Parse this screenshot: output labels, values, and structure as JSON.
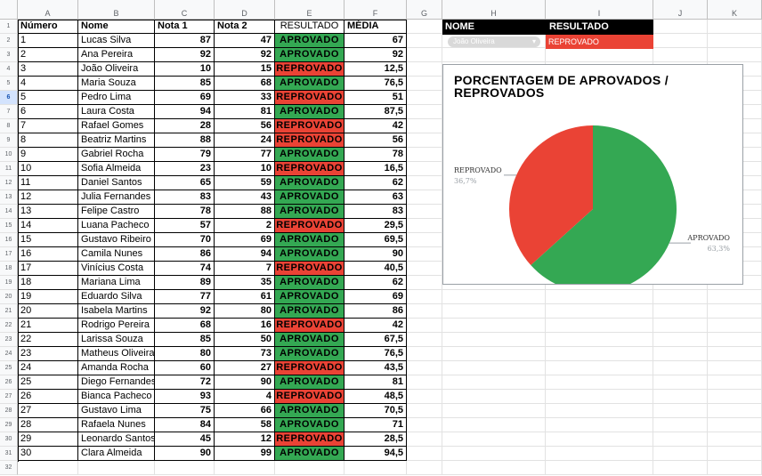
{
  "columns": [
    "A",
    "B",
    "C",
    "D",
    "E",
    "F",
    "G",
    "H",
    "I",
    "J",
    "K"
  ],
  "header": {
    "numero": "Número",
    "nome": "Nome",
    "nota1": "Nota 1",
    "nota2": "Nota 2",
    "resultado": "RESULTADO",
    "media": "MÉDIA"
  },
  "rows": [
    [
      "1",
      "Lucas Silva",
      "87",
      "47",
      "APROVADO",
      "67"
    ],
    [
      "2",
      "Ana Pereira",
      "92",
      "92",
      "APROVADO",
      "92"
    ],
    [
      "3",
      "João Oliveira",
      "10",
      "15",
      "REPROVADO",
      "12,5"
    ],
    [
      "4",
      "Maria Souza",
      "85",
      "68",
      "APROVADO",
      "76,5"
    ],
    [
      "5",
      "Pedro Lima",
      "69",
      "33",
      "REPROVADO",
      "51"
    ],
    [
      "6",
      "Laura Costa",
      "94",
      "81",
      "APROVADO",
      "87,5"
    ],
    [
      "7",
      "Rafael Gomes",
      "28",
      "56",
      "REPROVADO",
      "42"
    ],
    [
      "8",
      "Beatriz Martins",
      "88",
      "24",
      "REPROVADO",
      "56"
    ],
    [
      "9",
      "Gabriel Rocha",
      "79",
      "77",
      "APROVADO",
      "78"
    ],
    [
      "10",
      "Sofia Almeida",
      "23",
      "10",
      "REPROVADO",
      "16,5"
    ],
    [
      "11",
      "Daniel Santos",
      "65",
      "59",
      "APROVADO",
      "62"
    ],
    [
      "12",
      "Julia Fernandes",
      "83",
      "43",
      "APROVADO",
      "63"
    ],
    [
      "13",
      "Felipe Castro",
      "78",
      "88",
      "APROVADO",
      "83"
    ],
    [
      "14",
      "Luana Pacheco",
      "57",
      "2",
      "REPROVADO",
      "29,5"
    ],
    [
      "15",
      "Gustavo Ribeiro",
      "70",
      "69",
      "APROVADO",
      "69,5"
    ],
    [
      "16",
      "Camila Nunes",
      "86",
      "94",
      "APROVADO",
      "90"
    ],
    [
      "17",
      "Vinícius Costa",
      "74",
      "7",
      "REPROVADO",
      "40,5"
    ],
    [
      "18",
      "Mariana Lima",
      "89",
      "35",
      "APROVADO",
      "62"
    ],
    [
      "19",
      "Eduardo Silva",
      "77",
      "61",
      "APROVADO",
      "69"
    ],
    [
      "20",
      "Isabela Martins",
      "92",
      "80",
      "APROVADO",
      "86"
    ],
    [
      "21",
      "Rodrigo Pereira",
      "68",
      "16",
      "REPROVADO",
      "42"
    ],
    [
      "22",
      "Larissa Souza",
      "85",
      "50",
      "APROVADO",
      "67,5"
    ],
    [
      "23",
      "Matheus Oliveira",
      "80",
      "73",
      "APROVADO",
      "76,5"
    ],
    [
      "24",
      "Amanda Rocha",
      "60",
      "27",
      "REPROVADO",
      "43,5"
    ],
    [
      "25",
      "Diego Fernandes",
      "72",
      "90",
      "APROVADO",
      "81"
    ],
    [
      "26",
      "Bianca Pacheco",
      "93",
      "4",
      "REPROVADO",
      "48,5"
    ],
    [
      "27",
      "Gustavo Lima",
      "75",
      "66",
      "APROVADO",
      "70,5"
    ],
    [
      "28",
      "Rafaela Nunes",
      "84",
      "58",
      "APROVADO",
      "71"
    ],
    [
      "29",
      "Leonardo Santos",
      "45",
      "12",
      "REPROVADO",
      "28,5"
    ],
    [
      "30",
      "Clara Almeida",
      "90",
      "99",
      "APROVADO",
      "94,5"
    ]
  ],
  "selected_row": 6,
  "colors": {
    "aprovado": "#34a853",
    "reprovado": "#ea4335",
    "header_bg": "#f8f9fa",
    "selection": "#d3e3fd"
  },
  "lookup": {
    "nome_label": "NOME",
    "resultado_label": "RESULTADO",
    "nome_value": "João Oliveira",
    "resultado_value": "REPROVADO",
    "dropdown_icon": "chevron-down-icon"
  },
  "chart_data": {
    "type": "pie",
    "title": "PORCENTAGEM DE APROVADOS / REPROVADOS",
    "slices": [
      {
        "label": "APROVADO",
        "value": 63.3,
        "display": "63,3%",
        "color": "#34a853"
      },
      {
        "label": "REPROVADO",
        "value": 36.7,
        "display": "36,7%",
        "color": "#ea4335"
      }
    ]
  }
}
